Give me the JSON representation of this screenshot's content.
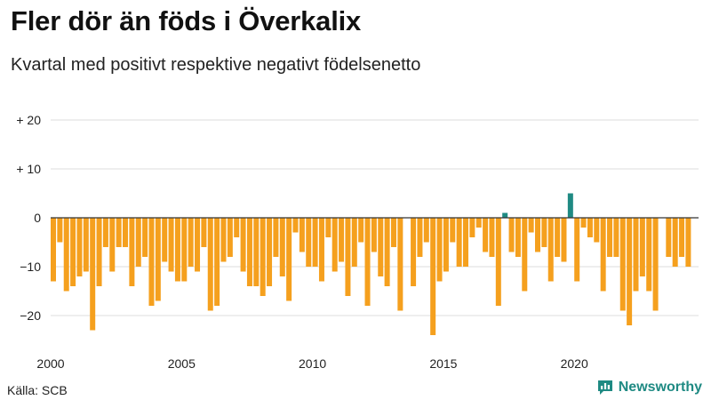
{
  "chart_data": {
    "type": "bar",
    "title": "Fler dör än föds i Överkalix",
    "subtitle": "Kvartal med positivt respektive negativt födelsenetto",
    "xlabel": "",
    "ylabel": "",
    "ylim": [
      -26,
      22
    ],
    "y_ticks": [
      {
        "value": 20,
        "label": "+ 20"
      },
      {
        "value": 10,
        "label": "+ 10"
      },
      {
        "value": 0,
        "label": "0"
      },
      {
        "value": -10,
        "label": "−10"
      },
      {
        "value": -20,
        "label": "−20"
      }
    ],
    "x_ticks": [
      {
        "value": 2000,
        "label": "2000"
      },
      {
        "value": 2005,
        "label": "2005"
      },
      {
        "value": 2010,
        "label": "2010"
      },
      {
        "value": 2015,
        "label": "2015"
      },
      {
        "value": 2020,
        "label": "2020"
      }
    ],
    "start_year": 2000,
    "start_quarter": 1,
    "values": [
      -13,
      -5,
      -15,
      -14,
      -12,
      -11,
      -23,
      -14,
      -6,
      -11,
      -6,
      -6,
      -14,
      -10,
      -8,
      -18,
      -17,
      -9,
      -11,
      -13,
      -13,
      -10,
      -11,
      -6,
      -19,
      -18,
      -9,
      -8,
      -4,
      -11,
      -14,
      -14,
      -16,
      -14,
      -8,
      -12,
      -17,
      -3,
      -7,
      -10,
      -10,
      -13,
      -4,
      -11,
      -9,
      -16,
      -10,
      -5,
      -18,
      -7,
      -12,
      -14,
      -6,
      -19,
      0,
      -14,
      -8,
      -5,
      -24,
      -13,
      -11,
      -5,
      -10,
      -10,
      -4,
      -2,
      -7,
      -8,
      -18,
      1,
      -7,
      -8,
      -15,
      -3,
      -7,
      -6,
      -13,
      -8,
      -9,
      5,
      -13,
      -2,
      -4,
      -5,
      -15,
      -8,
      -8,
      -19,
      -22,
      -15,
      -12,
      -15,
      -19,
      0,
      -8,
      -10,
      -8,
      -10
    ],
    "colors": {
      "negative": "#f5a01e",
      "positive": "#1f8a83",
      "grid": "#dddddd",
      "axis": "#333333"
    }
  },
  "footer": {
    "source": "Källa: SCB",
    "brand": "Newsworthy"
  }
}
